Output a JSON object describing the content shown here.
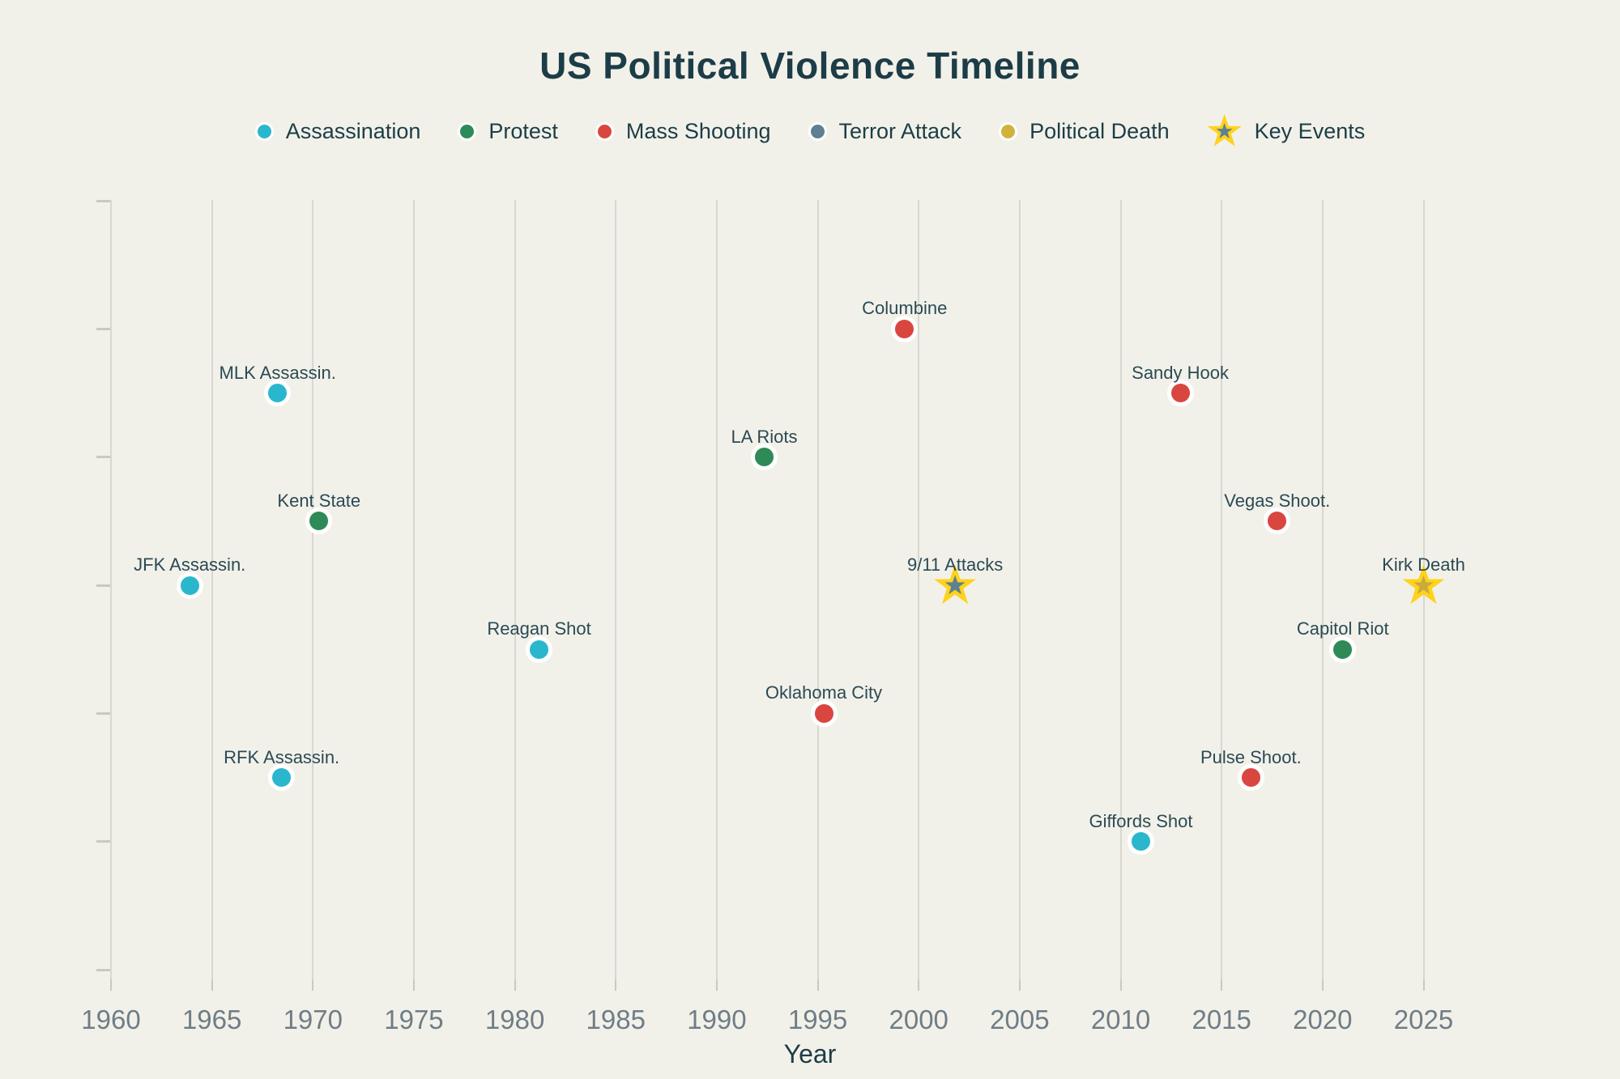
{
  "page": {
    "background": "#f2f1e9"
  },
  "header": {
    "title": "US Political Violence Timeline"
  },
  "colors": {
    "title_text": "#1c3d47",
    "point_label_text": "#2b4a55",
    "tick_label_text": "#6e7d87",
    "gridline": "#d8d7d0",
    "tick_mark": "#c9c8c1",
    "marker_ring": "#ffffff",
    "key_event_gold": "#ffd21c"
  },
  "legend": {
    "position": "top",
    "items": [
      {
        "label": "Assassination",
        "marker": "circle",
        "color": "#2ab7ce"
      },
      {
        "label": "Protest",
        "marker": "circle",
        "color": "#2e8b57"
      },
      {
        "label": "Mass Shooting",
        "marker": "circle",
        "color": "#d9463f"
      },
      {
        "label": "Terror Attack",
        "marker": "circle",
        "color": "#5e8091"
      },
      {
        "label": "Political Death",
        "marker": "circle",
        "color": "#d1b23d"
      },
      {
        "label": "Key Events",
        "marker": "star",
        "color": "#ffd21c",
        "inner_color": "#5e8091"
      }
    ]
  },
  "chart_data": {
    "type": "scatter",
    "title": "US Political Violence Timeline",
    "xlabel": "Year",
    "ylabel": "",
    "x_range": [
      1960,
      2025
    ],
    "x_ticks": [
      1960,
      1965,
      1970,
      1975,
      1980,
      1985,
      1990,
      1995,
      2000,
      2005,
      2010,
      2015,
      2020,
      2025
    ],
    "y_range": [
      0,
      6
    ],
    "y_ticks": [
      0,
      1,
      2,
      3,
      4,
      5,
      6
    ],
    "y_ticks_labeled": false,
    "grid": "vertical-only",
    "legend_position": "top-center",
    "categories": {
      "assassination": {
        "label": "Assassination",
        "color": "#2ab7ce"
      },
      "protest": {
        "label": "Protest",
        "color": "#2e8b57"
      },
      "mass_shooting": {
        "label": "Mass Shooting",
        "color": "#d9463f"
      },
      "terror_attack": {
        "label": "Terror Attack",
        "color": "#5e8091"
      },
      "political_death": {
        "label": "Political Death",
        "color": "#c9ab3c"
      }
    },
    "points": [
      {
        "label": "JFK Assassin.",
        "year": 1963.9,
        "y": 3.0,
        "category": "assassination",
        "key_event": false
      },
      {
        "label": "MLK Assassin.",
        "year": 1968.25,
        "y": 4.5,
        "category": "assassination",
        "key_event": false
      },
      {
        "label": "RFK Assassin.",
        "year": 1968.45,
        "y": 1.5,
        "category": "assassination",
        "key_event": false
      },
      {
        "label": "Kent State",
        "year": 1970.3,
        "y": 3.5,
        "category": "protest",
        "key_event": false
      },
      {
        "label": "Reagan Shot",
        "year": 1981.2,
        "y": 2.5,
        "category": "assassination",
        "key_event": false
      },
      {
        "label": "LA Riots",
        "year": 1992.35,
        "y": 4.0,
        "category": "protest",
        "key_event": false
      },
      {
        "label": "Oklahoma City",
        "year": 1995.3,
        "y": 2.0,
        "category": "mass_shooting",
        "key_event": false
      },
      {
        "label": "Columbine",
        "year": 1999.3,
        "y": 5.0,
        "category": "mass_shooting",
        "key_event": false
      },
      {
        "label": "9/11 Attacks",
        "year": 2001.8,
        "y": 3.0,
        "category": "terror_attack",
        "key_event": true
      },
      {
        "label": "Giffords Shot",
        "year": 2011.0,
        "y": 1.0,
        "category": "assassination",
        "key_event": false
      },
      {
        "label": "Sandy Hook",
        "year": 2012.95,
        "y": 4.5,
        "category": "mass_shooting",
        "key_event": false
      },
      {
        "label": "Pulse Shoot.",
        "year": 2016.45,
        "y": 1.5,
        "category": "mass_shooting",
        "key_event": false
      },
      {
        "label": "Vegas Shoot.",
        "year": 2017.75,
        "y": 3.5,
        "category": "mass_shooting",
        "key_event": false
      },
      {
        "label": "Capitol Riot",
        "year": 2021.0,
        "y": 2.5,
        "category": "protest",
        "key_event": false
      },
      {
        "label": "Kirk Death",
        "year": 2025.0,
        "y": 3.0,
        "category": "political_death",
        "key_event": true
      }
    ]
  }
}
